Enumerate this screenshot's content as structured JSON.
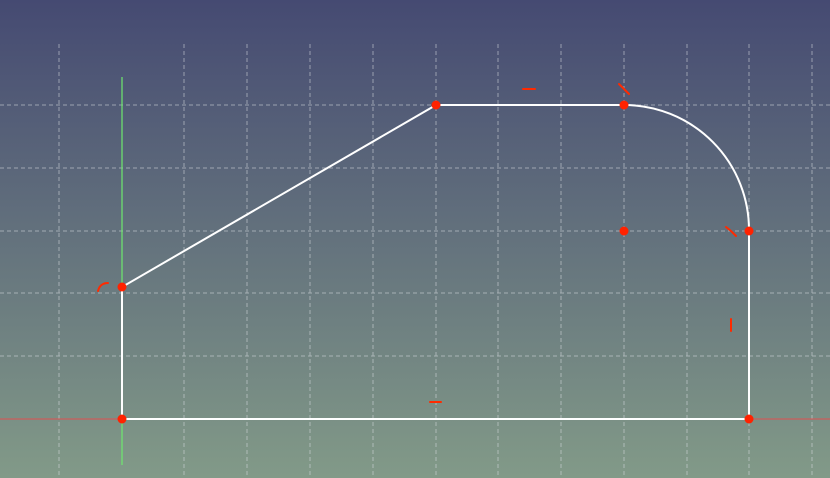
{
  "viewport": {
    "background_top": "#454a72",
    "background_bottom": "#829a88",
    "grid_color": "#d8dce0",
    "x_axis_color": "#e05050",
    "y_axis_color": "#6ee86e",
    "geometry_color": "#ffffff",
    "vertex_color": "#ff2200",
    "constraint_color": "#ff2a00"
  },
  "sketch": {
    "vertices": [
      "origin",
      "left-top",
      "slope-top",
      "arc-start",
      "arc-end",
      "bottom-right",
      "arc-center"
    ],
    "constraints": [
      {
        "type": "horizontal",
        "on": "top-line"
      },
      {
        "type": "horizontal",
        "on": "bottom-line"
      },
      {
        "type": "vertical",
        "on": "right-line"
      },
      {
        "type": "tangent",
        "on": "arc-start"
      },
      {
        "type": "tangent",
        "on": "arc-end"
      },
      {
        "type": "coincident",
        "on": "left-top"
      }
    ]
  }
}
